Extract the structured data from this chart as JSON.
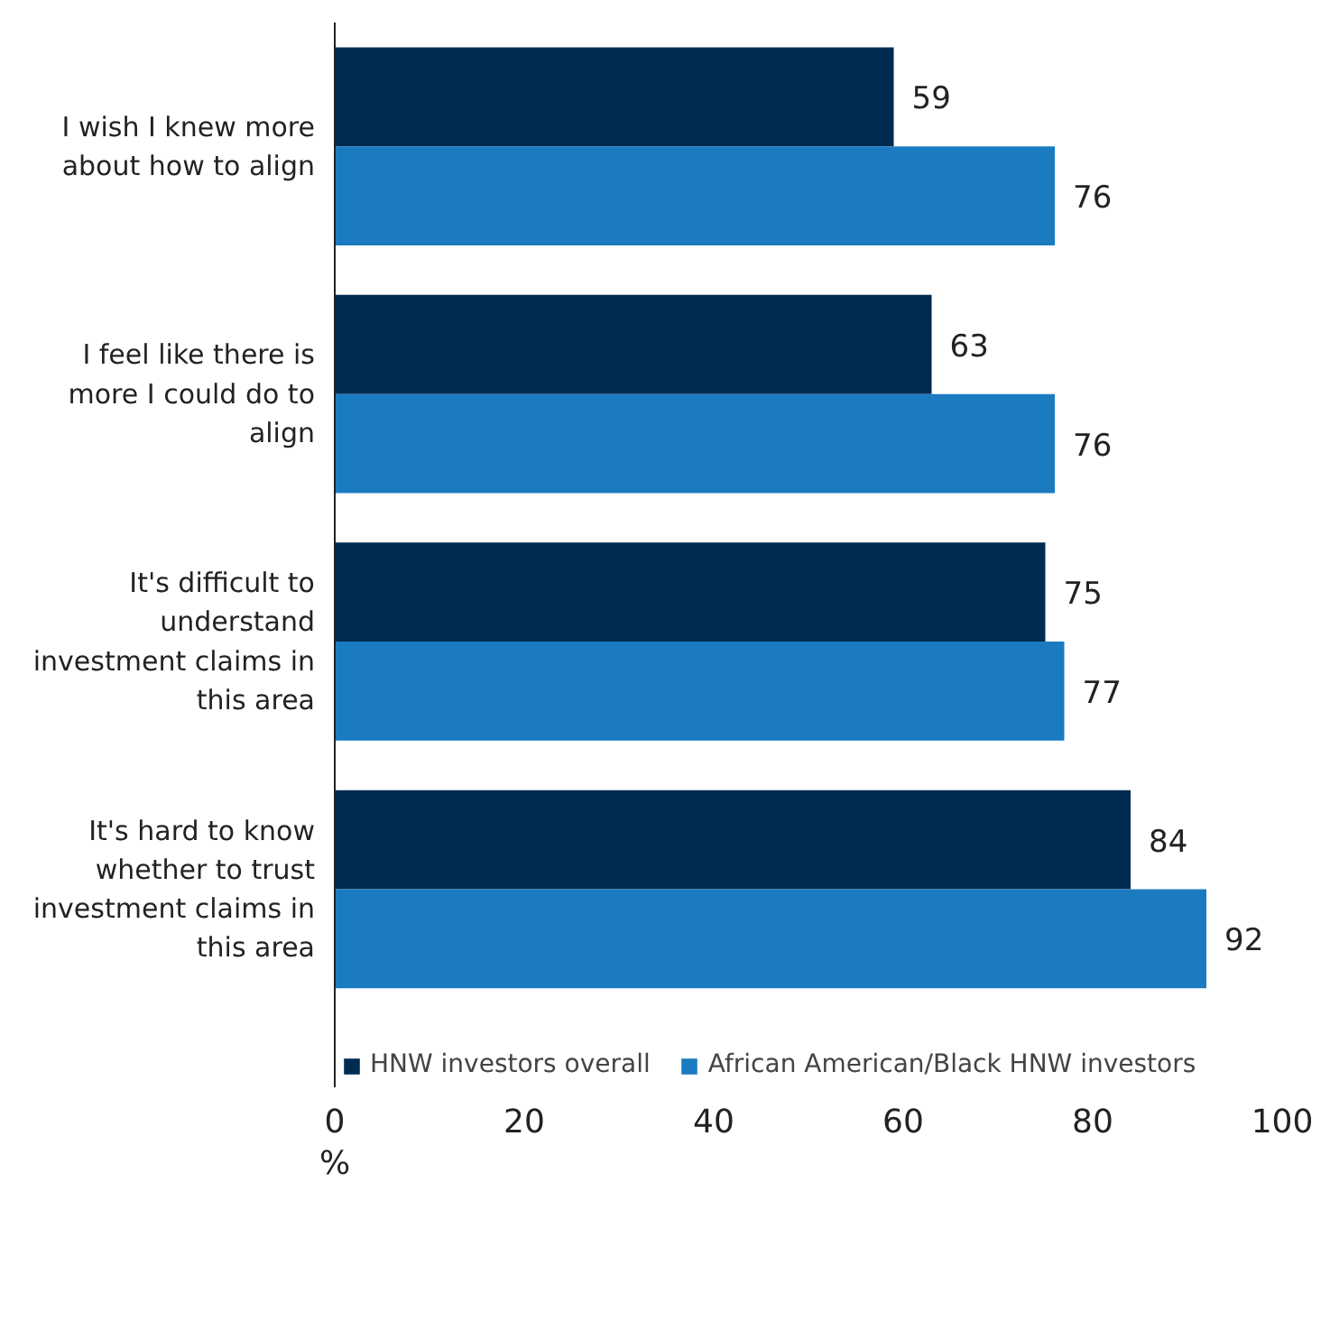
{
  "chart_data": {
    "type": "bar",
    "orientation": "horizontal",
    "xlabel": "%",
    "categories": [
      "I wish I knew more about how to align",
      "I feel like there is more I could do to align",
      "It's difficult to understand investment claims in this area",
      "It's hard to know whether to trust investment claims in this area"
    ],
    "series": [
      {
        "name": "HNW investors overall",
        "color": "#002b50",
        "values": [
          59,
          63,
          75,
          84
        ]
      },
      {
        "name": "African American/Black HNW investors",
        "color": "#1b7bc0",
        "values": [
          76,
          76,
          77,
          92
        ]
      }
    ],
    "xlim": [
      0,
      100
    ],
    "xticks": [
      0,
      20,
      40,
      60,
      80,
      100
    ],
    "grid": false,
    "legend": "bottom",
    "data_labels": true
  }
}
